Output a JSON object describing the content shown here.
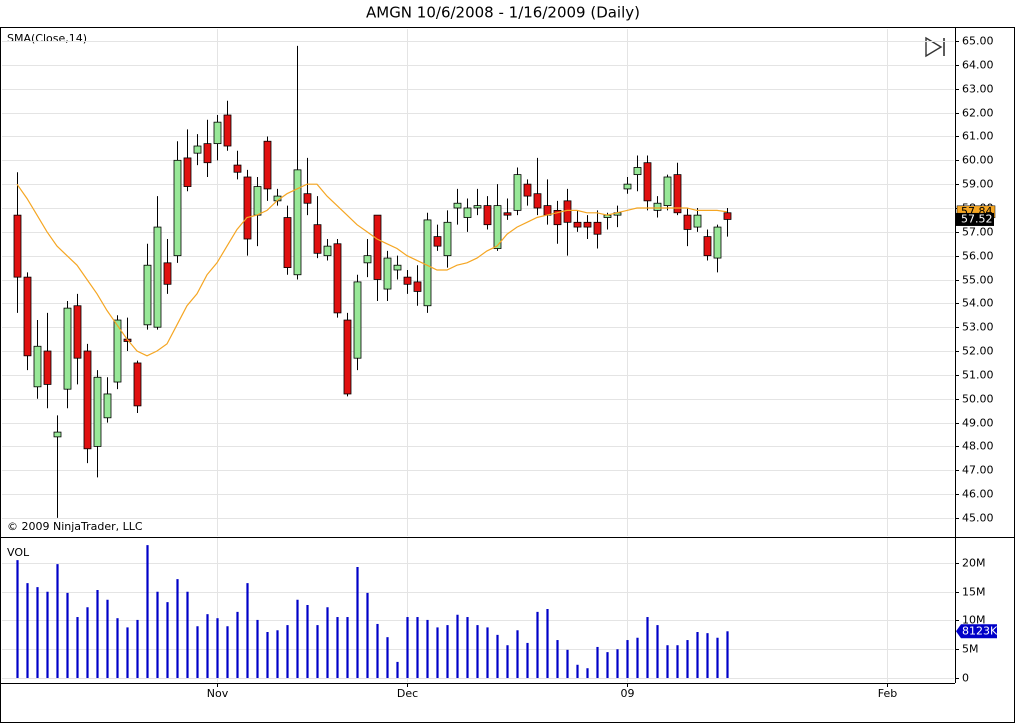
{
  "chart_data": [
    {
      "type": "candlestick",
      "title": "AMGN  10/6/2008 - 1/16/2009 (Daily)",
      "annotations": [
        "© 2009 NinjaTrader, LLC"
      ],
      "up_color": "#98e898",
      "down_color": "#e01010",
      "x": [
        0,
        1,
        2,
        3,
        4,
        5,
        6,
        7,
        8,
        9,
        10,
        11,
        12,
        13,
        14,
        15,
        16,
        17,
        18,
        19,
        20,
        21,
        22,
        23,
        24,
        25,
        26,
        27,
        28,
        29,
        30,
        31,
        32,
        33,
        34,
        35,
        36,
        37,
        38,
        39,
        40,
        41,
        42,
        43,
        44,
        45,
        46,
        47,
        48,
        49,
        50,
        51,
        52,
        53,
        54,
        55,
        56,
        57,
        58,
        59,
        60,
        61,
        62,
        63,
        64,
        65,
        66,
        67,
        68,
        69,
        70,
        71
      ],
      "open": [
        57.7,
        55.1,
        50.5,
        52.0,
        48.4,
        50.4,
        53.9,
        52.0,
        48.0,
        49.2,
        50.7,
        52.5,
        51.5,
        53.1,
        53.0,
        55.7,
        56.0,
        60.1,
        60.3,
        60.7,
        60.7,
        61.9,
        59.8,
        59.3,
        57.7,
        60.8,
        58.3,
        57.6,
        55.2,
        58.6,
        57.3,
        56.0,
        56.5,
        53.3,
        51.7,
        55.7,
        57.7,
        54.6,
        55.4,
        55.1,
        54.9,
        53.9,
        56.8,
        56.0,
        58.0,
        57.6,
        58.0,
        58.1,
        56.3,
        57.8,
        57.9,
        59.0,
        58.6,
        58.1,
        57.9,
        58.3,
        57.4,
        57.4,
        57.4,
        57.6,
        57.7,
        58.8,
        59.4,
        59.9,
        57.9,
        58.1,
        59.4,
        57.7,
        57.2,
        56.8,
        55.9,
        57.8
      ],
      "high": [
        59.5,
        55.3,
        53.3,
        53.6,
        49.3,
        54.1,
        54.4,
        52.3,
        51.2,
        50.9,
        53.5,
        53.4,
        51.6,
        56.5,
        58.5,
        56.7,
        60.8,
        61.3,
        61.1,
        61.7,
        61.9,
        62.5,
        60.4,
        59.6,
        59.3,
        61.0,
        58.8,
        58.1,
        64.8,
        60.1,
        58.5,
        56.7,
        56.7,
        53.6,
        55.2,
        56.7,
        57.7,
        56.2,
        56.0,
        55.4,
        55.6,
        57.8,
        57.3,
        57.9,
        58.8,
        58.4,
        58.8,
        58.5,
        59.0,
        58.4,
        59.7,
        59.2,
        60.1,
        59.2,
        58.3,
        58.8,
        57.9,
        57.7,
        57.9,
        57.8,
        58.1,
        59.3,
        60.2,
        60.2,
        58.5,
        59.4,
        59.9,
        58.0,
        58.0,
        57.1,
        57.3,
        58.0
      ],
      "low": [
        53.6,
        51.2,
        50.0,
        49.6,
        45.0,
        49.6,
        50.6,
        47.3,
        46.7,
        49.0,
        50.4,
        52.0,
        49.4,
        52.9,
        52.9,
        54.4,
        55.7,
        58.7,
        59.8,
        59.3,
        60.0,
        60.4,
        59.2,
        56.0,
        56.4,
        58.3,
        58.1,
        55.2,
        55.0,
        57.7,
        55.9,
        55.8,
        53.4,
        50.1,
        51.2,
        55.1,
        54.1,
        54.1,
        55.0,
        54.4,
        53.9,
        53.6,
        56.2,
        55.5,
        57.3,
        57.0,
        57.7,
        57.1,
        56.2,
        57.5,
        57.7,
        58.1,
        57.7,
        57.3,
        56.5,
        56.0,
        57.0,
        56.7,
        56.3,
        57.1,
        57.2,
        58.6,
        58.7,
        57.9,
        57.6,
        57.9,
        57.7,
        56.4,
        57.0,
        55.8,
        55.3,
        56.8
      ],
      "close": [
        55.1,
        51.8,
        52.2,
        50.6,
        48.6,
        53.8,
        51.7,
        47.9,
        50.9,
        50.2,
        53.3,
        52.4,
        49.7,
        55.6,
        57.2,
        54.8,
        60.0,
        58.9,
        60.6,
        59.9,
        61.6,
        60.6,
        59.5,
        56.7,
        58.9,
        58.8,
        58.5,
        55.5,
        59.6,
        58.2,
        56.1,
        56.4,
        53.6,
        50.2,
        54.9,
        56.0,
        55.0,
        55.9,
        55.6,
        54.8,
        54.5,
        57.5,
        56.4,
        57.4,
        58.2,
        58.0,
        58.1,
        57.3,
        58.1,
        57.7,
        59.4,
        58.5,
        58.0,
        57.7,
        57.3,
        57.4,
        57.2,
        57.2,
        56.9,
        57.7,
        57.8,
        59.0,
        59.7,
        58.3,
        58.2,
        59.3,
        57.8,
        57.1,
        57.7,
        56.0,
        57.2,
        57.52
      ],
      "series": [
        {
          "name": "SMA(Close,14)",
          "color": "#f5a623",
          "values": [
            59.0,
            58.4,
            57.7,
            57.0,
            56.4,
            56.0,
            55.6,
            55.0,
            54.4,
            53.7,
            53.1,
            52.5,
            52.0,
            51.8,
            52.0,
            52.3,
            53.1,
            53.9,
            54.4,
            55.2,
            55.7,
            56.4,
            57.1,
            57.6,
            57.7,
            57.9,
            58.3,
            58.6,
            58.8,
            59.0,
            59.0,
            58.5,
            58.1,
            57.7,
            57.3,
            57.0,
            56.7,
            56.5,
            56.3,
            56.0,
            55.8,
            55.6,
            55.4,
            55.4,
            55.6,
            55.7,
            55.9,
            56.2,
            56.4,
            56.9,
            57.2,
            57.4,
            57.6,
            57.7,
            57.8,
            57.9,
            57.9,
            57.8,
            57.8,
            57.7,
            57.8,
            57.9,
            58.0,
            58.0,
            58.0,
            58.0,
            58.0,
            58.0,
            57.9,
            57.9,
            57.9,
            57.84
          ]
        }
      ],
      "xlim": [
        -1.6,
        93.8
      ],
      "ylim": [
        44.2,
        65.55
      ],
      "yticks": [
        {
          "value": 45,
          "label": "45.00"
        },
        {
          "value": 46,
          "label": "46.00"
        },
        {
          "value": 47,
          "label": "47.00"
        },
        {
          "value": 48,
          "label": "48.00"
        },
        {
          "value": 49,
          "label": "49.00"
        },
        {
          "value": 50,
          "label": "50.00"
        },
        {
          "value": 51,
          "label": "51.00"
        },
        {
          "value": 52,
          "label": "52.00"
        },
        {
          "value": 53,
          "label": "53.00"
        },
        {
          "value": 54,
          "label": "54.00"
        },
        {
          "value": 55,
          "label": "55.00"
        },
        {
          "value": 56,
          "label": "56.00"
        },
        {
          "value": 57,
          "label": "57.00"
        },
        {
          "value": 58,
          "label": "58.00"
        },
        {
          "value": 59,
          "label": "59.00"
        },
        {
          "value": 60,
          "label": "60.00"
        },
        {
          "value": 61,
          "label": "61.00"
        },
        {
          "value": 62,
          "label": "62.00"
        },
        {
          "value": 63,
          "label": "63.00"
        },
        {
          "value": 64,
          "label": "64.00"
        },
        {
          "value": 65,
          "label": "65.00"
        }
      ],
      "grid": true
    },
    {
      "type": "bar",
      "title": "VOL",
      "color": "#0000c8",
      "values": [
        20500000,
        16500000,
        15800000,
        15000000,
        19800000,
        14800000,
        10600000,
        12300000,
        15300000,
        13600000,
        10400000,
        8800000,
        10100000,
        23100000,
        15000000,
        13200000,
        17200000,
        15000000,
        9000000,
        11100000,
        10400000,
        9000000,
        11500000,
        16500000,
        10100000,
        8000000,
        8300000,
        9200000,
        13600000,
        12700000,
        9200000,
        12300000,
        10600000,
        10600000,
        19300000,
        14800000,
        9400000,
        7100000,
        2800000,
        10600000,
        10600000,
        10100000,
        8800000,
        9200000,
        11000000,
        10600000,
        9200000,
        8800000,
        7500000,
        5700000,
        8300000,
        6100000,
        11500000,
        12000000,
        6600000,
        4900000,
        2300000,
        1700000,
        5400000,
        4500000,
        5000000,
        6600000,
        7000000,
        10600000,
        9200000,
        5700000,
        5700000,
        6600000,
        8000000,
        7800000,
        7000000,
        8123000
      ],
      "value_labels": [
        null,
        null,
        null,
        null,
        null,
        null,
        null,
        null,
        null,
        null,
        null,
        null,
        null,
        null,
        null,
        null,
        null,
        null,
        null,
        null,
        null,
        null,
        null,
        null,
        null,
        null,
        null,
        null,
        null,
        null,
        null,
        null,
        null,
        null,
        null,
        null,
        null,
        null,
        null,
        null,
        null,
        null,
        null,
        null,
        null,
        null,
        null,
        null,
        null,
        null,
        null,
        null,
        null,
        null,
        null,
        null,
        null,
        null,
        null,
        null,
        null,
        null,
        null,
        null,
        null,
        null,
        null,
        null,
        null,
        null,
        null,
        "8123K"
      ],
      "xlim": [
        -1.6,
        93.8
      ],
      "xticks": [
        {
          "value": 20,
          "label": "Nov"
        },
        {
          "value": 39,
          "label": "Dec"
        },
        {
          "value": 61,
          "label": "09"
        },
        {
          "value": 87,
          "label": "Feb"
        }
      ],
      "ylim": [
        -870000,
        24520000
      ],
      "yticks": [
        0,
        {
          "value": 5000000,
          "label": "5M"
        },
        {
          "value": 10000000,
          "label": "10M"
        },
        {
          "value": 15000000,
          "label": "15M"
        },
        {
          "value": 20000000,
          "label": "20M"
        }
      ],
      "grid": true
    }
  ]
}
